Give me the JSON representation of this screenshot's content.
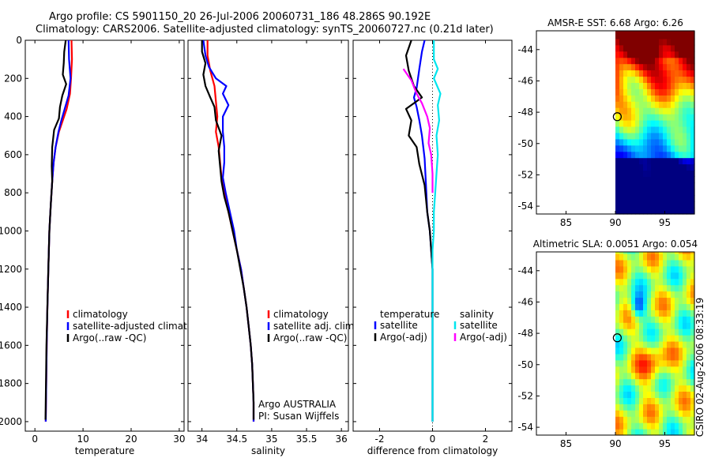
{
  "header": {
    "line1": "Argo profile: CS 5901150_20 26-Jul-2006 20060731_186 48.286S 90.192E",
    "line2": "Climatology: CARS2006. Satellite-adjusted climatology: synTS_20060727.nc (0.21d later)"
  },
  "colors": {
    "climatology": "#ff0000",
    "satellite": "#0000ff",
    "argo": "#000000",
    "sal_satellite": "#00e5ee",
    "sal_argo": "#ff00ff"
  },
  "chart_data": [
    {
      "type": "line",
      "id": "temperature",
      "xlabel": "temperature",
      "ylabel": "",
      "xlim": [
        -2,
        31
      ],
      "ylim": [
        0,
        2050
      ],
      "y_reversed": true,
      "xticks": [
        "0",
        "10",
        "20",
        "30"
      ],
      "yticks": [
        "0",
        "200",
        "400",
        "600",
        "800",
        "1000",
        "1200",
        "1400",
        "1600",
        "1800",
        "2000"
      ],
      "legend": [
        "climatology",
        "satellite-adjusted climatology",
        "Argo(..raw -QC)"
      ],
      "series": [
        {
          "name": "climatology",
          "color": "#ff0000",
          "points": [
            [
              7.6,
              0
            ],
            [
              7.7,
              100
            ],
            [
              7.5,
              200
            ],
            [
              7.3,
              280
            ],
            [
              6.6,
              360
            ],
            [
              5.8,
              420
            ],
            [
              5.0,
              480
            ],
            [
              4.3,
              560
            ],
            [
              3.9,
              640
            ],
            [
              3.6,
              740
            ],
            [
              3.3,
              860
            ],
            [
              3.0,
              1000
            ],
            [
              2.8,
              1200
            ],
            [
              2.6,
              1400
            ],
            [
              2.45,
              1600
            ],
            [
              2.35,
              1800
            ],
            [
              2.25,
              2000
            ]
          ]
        },
        {
          "name": "satellite-adjusted climatology",
          "color": "#0000ff",
          "points": [
            [
              7.0,
              0
            ],
            [
              7.1,
              100
            ],
            [
              7.4,
              200
            ],
            [
              7.0,
              290
            ],
            [
              6.2,
              360
            ],
            [
              5.5,
              420
            ],
            [
              4.9,
              480
            ],
            [
              4.3,
              560
            ],
            [
              3.9,
              640
            ],
            [
              3.6,
              740
            ],
            [
              3.3,
              860
            ],
            [
              3.0,
              1000
            ],
            [
              2.8,
              1200
            ],
            [
              2.6,
              1400
            ],
            [
              2.45,
              1600
            ],
            [
              2.35,
              1800
            ],
            [
              2.25,
              2000
            ]
          ]
        },
        {
          "name": "Argo(..raw -QC)",
          "color": "#000000",
          "points": [
            [
              6.4,
              0
            ],
            [
              6.1,
              60
            ],
            [
              6.0,
              120
            ],
            [
              5.8,
              180
            ],
            [
              6.5,
              230
            ],
            [
              5.7,
              290
            ],
            [
              5.2,
              350
            ],
            [
              5.0,
              410
            ],
            [
              4.0,
              470
            ],
            [
              3.6,
              560
            ],
            [
              3.5,
              660
            ],
            [
              3.6,
              740
            ],
            [
              3.3,
              860
            ],
            [
              3.0,
              1000
            ],
            [
              2.8,
              1200
            ],
            [
              2.6,
              1400
            ],
            [
              2.4,
              1600
            ],
            [
              2.3,
              1800
            ],
            [
              2.2,
              1990
            ]
          ]
        }
      ]
    },
    {
      "type": "line",
      "id": "salinity",
      "xlabel": "salinity",
      "xlim": [
        33.8,
        36.1
      ],
      "ylim": [
        0,
        2050
      ],
      "y_reversed": true,
      "xticks": [
        "34",
        "34.5",
        "35",
        "35.5",
        "36"
      ],
      "legend": [
        "climatology",
        "satellite adj. clim.",
        "Argo(..raw -QC)"
      ],
      "annotations": [
        "Argo AUSTRALIA",
        "PI: Susan Wijffels"
      ],
      "series": [
        {
          "name": "climatology",
          "color": "#ff0000",
          "points": [
            [
              34.08,
              0
            ],
            [
              34.08,
              80
            ],
            [
              34.12,
              160
            ],
            [
              34.18,
              240
            ],
            [
              34.2,
              320
            ],
            [
              34.22,
              400
            ],
            [
              34.2,
              480
            ],
            [
              34.24,
              560
            ],
            [
              34.26,
              640
            ],
            [
              34.28,
              720
            ],
            [
              34.32,
              800
            ],
            [
              34.38,
              900
            ],
            [
              34.44,
              1000
            ],
            [
              34.5,
              1100
            ],
            [
              34.56,
              1200
            ],
            [
              34.6,
              1300
            ],
            [
              34.64,
              1400
            ],
            [
              34.67,
              1500
            ],
            [
              34.7,
              1600
            ],
            [
              34.72,
              1700
            ],
            [
              34.73,
              1800
            ],
            [
              34.74,
              1900
            ],
            [
              34.74,
              2000
            ]
          ]
        },
        {
          "name": "satellite adj. clim.",
          "color": "#0000ff",
          "points": [
            [
              34.02,
              0
            ],
            [
              34.05,
              80
            ],
            [
              34.1,
              140
            ],
            [
              34.2,
              200
            ],
            [
              34.35,
              240
            ],
            [
              34.3,
              280
            ],
            [
              34.38,
              340
            ],
            [
              34.3,
              400
            ],
            [
              34.3,
              480
            ],
            [
              34.32,
              560
            ],
            [
              34.32,
              640
            ],
            [
              34.3,
              720
            ],
            [
              34.34,
              800
            ],
            [
              34.4,
              900
            ],
            [
              34.46,
              1000
            ],
            [
              34.5,
              1100
            ],
            [
              34.56,
              1200
            ],
            [
              34.6,
              1300
            ],
            [
              34.64,
              1400
            ],
            [
              34.67,
              1500
            ],
            [
              34.7,
              1600
            ],
            [
              34.72,
              1700
            ],
            [
              34.73,
              1800
            ],
            [
              34.74,
              1900
            ],
            [
              34.74,
              2000
            ]
          ]
        },
        {
          "name": "Argo(..raw -QC)",
          "color": "#000000",
          "points": [
            [
              34.0,
              0
            ],
            [
              34.0,
              60
            ],
            [
              34.05,
              120
            ],
            [
              34.02,
              180
            ],
            [
              34.05,
              240
            ],
            [
              34.12,
              300
            ],
            [
              34.18,
              350
            ],
            [
              34.2,
              420
            ],
            [
              34.28,
              500
            ],
            [
              34.24,
              580
            ],
            [
              34.26,
              660
            ],
            [
              34.28,
              740
            ],
            [
              34.32,
              820
            ],
            [
              34.38,
              900
            ],
            [
              34.44,
              1000
            ],
            [
              34.5,
              1100
            ],
            [
              34.55,
              1200
            ],
            [
              34.6,
              1300
            ],
            [
              34.64,
              1400
            ],
            [
              34.67,
              1500
            ],
            [
              34.7,
              1600
            ],
            [
              34.72,
              1700
            ],
            [
              34.73,
              1800
            ],
            [
              34.74,
              1900
            ],
            [
              34.74,
              1990
            ]
          ]
        }
      ]
    },
    {
      "type": "line",
      "id": "difference",
      "xlabel": "difference from climatology",
      "xlim": [
        -3,
        3
      ],
      "ylim": [
        0,
        2050
      ],
      "y_reversed": true,
      "xticks": [
        "-2",
        "0",
        "2"
      ],
      "legend_groups": [
        {
          "title": "temperature",
          "items": [
            "satellite",
            "Argo(-adj)"
          ]
        },
        {
          "title": "salinity",
          "items": [
            "satellite",
            "Argo(-adj)"
          ]
        }
      ],
      "series": [
        {
          "name": "temperature satellite",
          "color": "#0000ff",
          "points": [
            [
              -0.3,
              0
            ],
            [
              -0.4,
              60
            ],
            [
              -0.5,
              150
            ],
            [
              -0.6,
              250
            ],
            [
              -0.7,
              300
            ],
            [
              -0.6,
              350
            ],
            [
              -0.5,
              420
            ],
            [
              -0.4,
              500
            ],
            [
              -0.3,
              620
            ],
            [
              -0.25,
              750
            ],
            [
              -0.2,
              900
            ],
            [
              -0.1,
              1000
            ],
            [
              -0.05,
              1100
            ],
            [
              0,
              1200
            ],
            [
              0,
              2000
            ]
          ]
        },
        {
          "name": "temperature Argo(-adj)",
          "color": "#000000",
          "points": [
            [
              -0.8,
              0
            ],
            [
              -1.0,
              80
            ],
            [
              -0.9,
              160
            ],
            [
              -0.7,
              240
            ],
            [
              -0.4,
              300
            ],
            [
              -1.0,
              360
            ],
            [
              -0.8,
              420
            ],
            [
              -0.9,
              500
            ],
            [
              -0.6,
              560
            ],
            [
              -0.5,
              650
            ],
            [
              -0.3,
              760
            ],
            [
              -0.2,
              900
            ],
            [
              -0.1,
              1000
            ],
            [
              -0.05,
              1100
            ],
            [
              0,
              1200
            ],
            [
              0,
              2000
            ]
          ]
        },
        {
          "name": "salinity satellite",
          "color": "#00e5ee",
          "points": [
            [
              0.05,
              0
            ],
            [
              0.05,
              100
            ],
            [
              0.2,
              150
            ],
            [
              0.05,
              200
            ],
            [
              0.3,
              280
            ],
            [
              0.2,
              340
            ],
            [
              0.25,
              420
            ],
            [
              0.15,
              500
            ],
            [
              0.2,
              600
            ],
            [
              0.15,
              700
            ],
            [
              0.1,
              800
            ],
            [
              0.05,
              900
            ],
            [
              0.05,
              1000
            ],
            [
              0,
              1100
            ],
            [
              0,
              2000
            ]
          ]
        },
        {
          "name": "salinity Argo(-adj)",
          "color": "#ff00ff",
          "points": [
            [
              -1.1,
              150
            ],
            [
              -0.8,
              210
            ],
            [
              -0.6,
              280
            ],
            [
              -0.4,
              330
            ],
            [
              -0.2,
              400
            ],
            [
              -0.1,
              460
            ],
            [
              -0.15,
              540
            ],
            [
              -0.05,
              600
            ],
            [
              0,
              700
            ],
            [
              0,
              800
            ]
          ]
        }
      ]
    },
    {
      "type": "heatmap",
      "id": "sst",
      "title": "AMSR-E SST: 6.68 Argo: 6.26",
      "xlim": [
        82,
        98
      ],
      "ylim": [
        -54.5,
        -42.8
      ],
      "xticks": [
        "85",
        "90",
        "95"
      ],
      "yticks": [
        "-44",
        "-46",
        "-48",
        "-50",
        "-52",
        "-54"
      ],
      "data_xrange": [
        90,
        98
      ],
      "float_position": {
        "lon": 90.192,
        "lat": -48.286
      }
    },
    {
      "type": "heatmap",
      "id": "sla",
      "title": "Altimetric SLA: 0.0051 Argo: 0.054",
      "xlim": [
        82,
        98
      ],
      "ylim": [
        -54.5,
        -42.8
      ],
      "xticks": [
        "85",
        "90",
        "95"
      ],
      "yticks": [
        "-44",
        "-46",
        "-48",
        "-50",
        "-52",
        "-54"
      ],
      "data_xrange": [
        90,
        98
      ],
      "float_position": {
        "lon": 90.192,
        "lat": -48.286
      }
    }
  ],
  "footer": {
    "stamp": "CSIRO 02-Aug-2006 08:33:19"
  }
}
